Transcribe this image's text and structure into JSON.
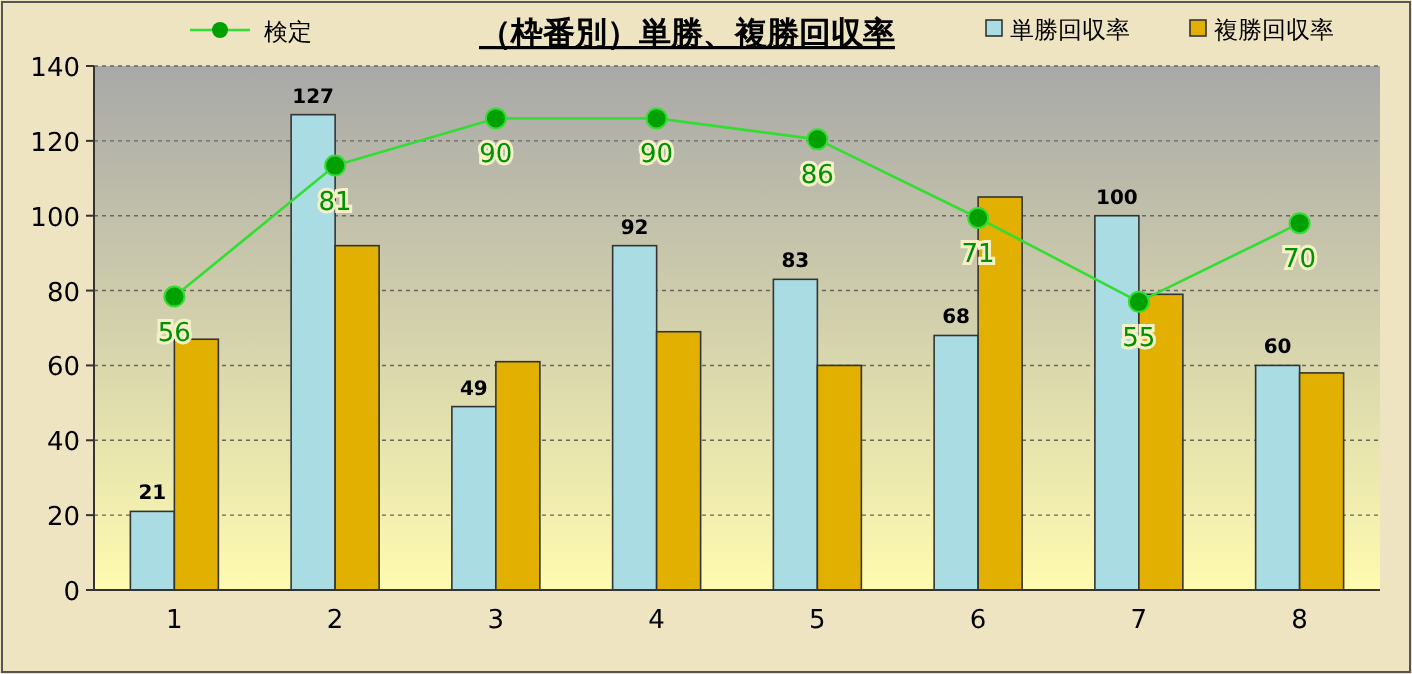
{
  "chart_data": {
    "type": "bar",
    "title": "（枠番別）単勝、複勝回収率",
    "categories": [
      "1",
      "2",
      "3",
      "4",
      "5",
      "6",
      "7",
      "8"
    ],
    "series": [
      {
        "name": "単勝回収率",
        "color": "#a9dde3",
        "values": [
          21,
          127,
          49,
          92,
          83,
          68,
          100,
          60
        ],
        "value_labels": [
          "21",
          "127",
          "49",
          "92",
          "83",
          "68",
          "100",
          "60"
        ]
      },
      {
        "name": "複勝回収率",
        "color": "#e2b000",
        "values": [
          67,
          92,
          61,
          69,
          60,
          105,
          79,
          58
        ]
      },
      {
        "name": "検定",
        "type": "line",
        "axis": "y2",
        "color": "#33dd33",
        "values": [
          56,
          81,
          90,
          90,
          86,
          71,
          55,
          70
        ],
        "value_labels": [
          "56",
          "81",
          "90",
          "90",
          "86",
          "71",
          "55",
          "70"
        ],
        "marker": "circle"
      }
    ],
    "ylim": [
      0,
      140
    ],
    "yticks": [
      0,
      20,
      40,
      60,
      80,
      100,
      120,
      140
    ],
    "y2lim": [
      0,
      100
    ],
    "grid": "y",
    "legend": "top"
  }
}
